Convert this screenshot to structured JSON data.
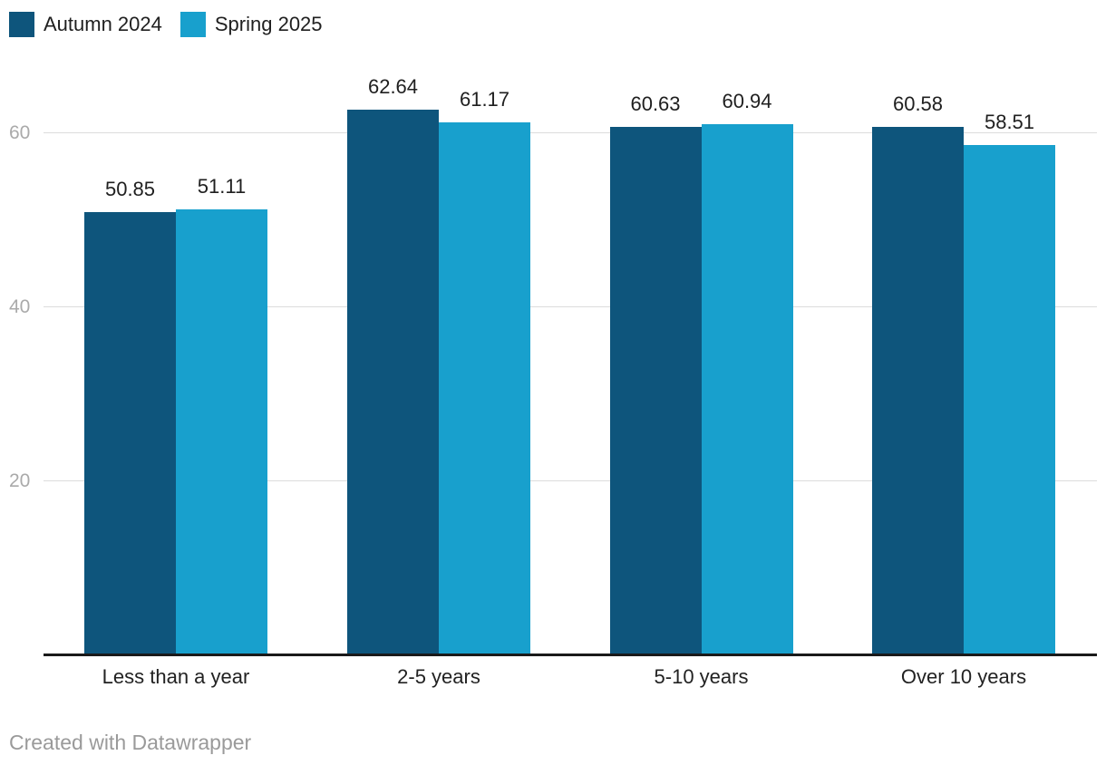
{
  "legend": {
    "position": "top-left"
  },
  "footer": {
    "text": "Created with Datawrapper"
  },
  "chart_data": {
    "type": "bar",
    "title": "",
    "xlabel": "",
    "ylabel": "",
    "categories": [
      "Less than a year",
      "2-5 years",
      "5-10 years",
      "Over 10 years"
    ],
    "series": [
      {
        "name": "Autumn 2024",
        "color": "#0e557c",
        "values": [
          50.85,
          62.64,
          60.63,
          60.58
        ]
      },
      {
        "name": "Spring 2025",
        "color": "#18a0cd",
        "values": [
          51.11,
          61.17,
          60.94,
          58.51
        ]
      }
    ],
    "ylim": [
      0,
      65
    ],
    "yticks": [
      20,
      40,
      60
    ],
    "grid": "horizontal",
    "legend_position": "top-left",
    "value_labels": true
  }
}
